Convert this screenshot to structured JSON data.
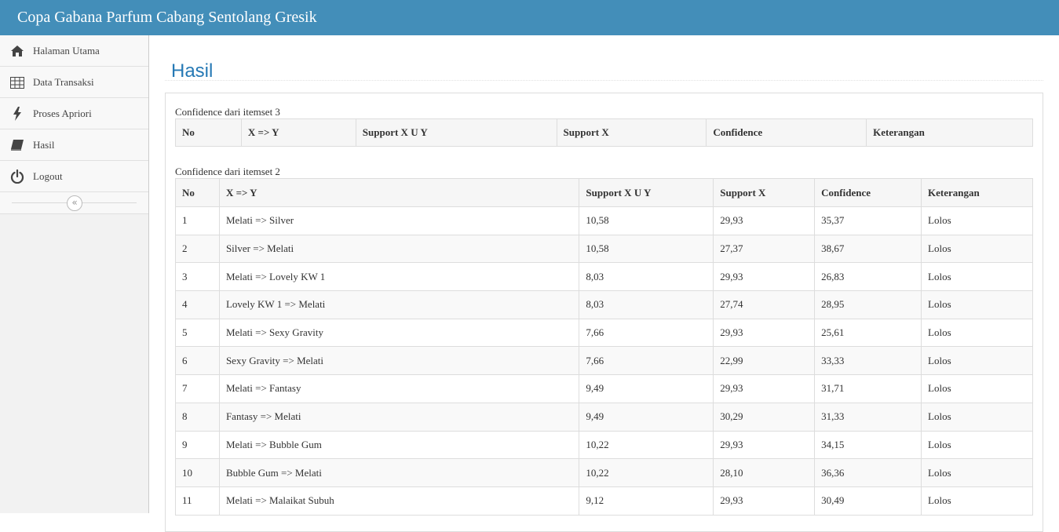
{
  "header": {
    "title": "Copa Gabana Parfum Cabang Sentolang Gresik"
  },
  "sidebar": {
    "items": [
      {
        "label": "Halaman Utama",
        "icon": "home-icon"
      },
      {
        "label": "Data Transaksi",
        "icon": "table-icon"
      },
      {
        "label": "Proses Apriori",
        "icon": "bolt-icon"
      },
      {
        "label": "Hasil",
        "icon": "book-icon"
      },
      {
        "label": "Logout",
        "icon": "power-icon"
      }
    ],
    "collapse_glyph": "«"
  },
  "main": {
    "title": "Hasil",
    "itemset3": {
      "caption": "Confidence dari itemset 3",
      "headers": [
        "No",
        "X => Y",
        "Support X U Y",
        "Support X",
        "Confidence",
        "Keterangan"
      ]
    },
    "itemset2": {
      "caption": "Confidence dari itemset 2",
      "headers": [
        "No",
        "X => Y",
        "Support X U Y",
        "Support X",
        "Confidence",
        "Keterangan"
      ],
      "rows": [
        [
          "1",
          "Melati => Silver",
          "10,58",
          "29,93",
          "35,37",
          "Lolos"
        ],
        [
          "2",
          "Silver => Melati",
          "10,58",
          "27,37",
          "38,67",
          "Lolos"
        ],
        [
          "3",
          "Melati => Lovely KW 1",
          "8,03",
          "29,93",
          "26,83",
          "Lolos"
        ],
        [
          "4",
          "Lovely KW 1 => Melati",
          "8,03",
          "27,74",
          "28,95",
          "Lolos"
        ],
        [
          "5",
          "Melati => Sexy Gravity",
          "7,66",
          "29,93",
          "25,61",
          "Lolos"
        ],
        [
          "6",
          "Sexy Gravity => Melati",
          "7,66",
          "22,99",
          "33,33",
          "Lolos"
        ],
        [
          "7",
          "Melati => Fantasy",
          "9,49",
          "29,93",
          "31,71",
          "Lolos"
        ],
        [
          "8",
          "Fantasy => Melati",
          "9,49",
          "30,29",
          "31,33",
          "Lolos"
        ],
        [
          "9",
          "Melati => Bubble Gum",
          "10,22",
          "29,93",
          "34,15",
          "Lolos"
        ],
        [
          "10",
          "Bubble Gum => Melati",
          "10,22",
          "28,10",
          "36,36",
          "Lolos"
        ],
        [
          "11",
          "Melati => Malaikat Subuh",
          "9,12",
          "29,93",
          "30,49",
          "Lolos"
        ]
      ]
    }
  },
  "colors": {
    "header_bg": "#438eb9",
    "title": "#2679b5",
    "sidebar_bg": "#f2f2f2"
  }
}
